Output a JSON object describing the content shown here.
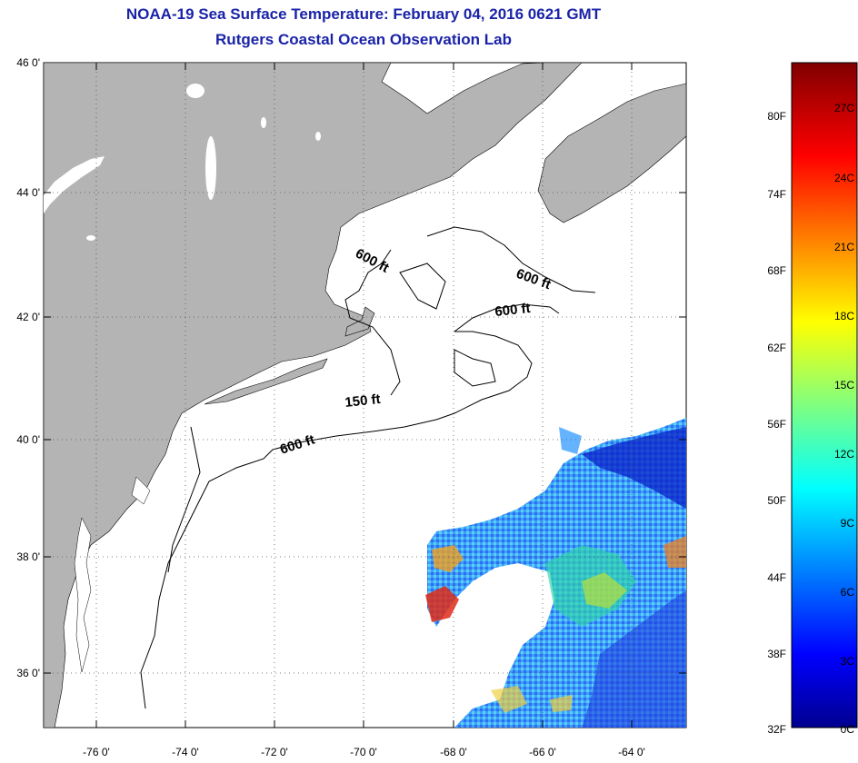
{
  "title": "NOAA-19 Sea Surface Temperature:  February 04, 2016 0621 GMT",
  "subtitle": "Rutgers Coastal Ocean Observation Lab",
  "latitude_ticks": [
    "46 0'",
    "44 0'",
    "42 0'",
    "40 0'",
    "38 0'",
    "36 0'"
  ],
  "longitude_ticks": [
    "-76 0'",
    "-74 0'",
    "-72 0'",
    "-70 0'",
    "-68 0'",
    "-66 0'",
    "-64 0'"
  ],
  "contour_labels": [
    "600 ft",
    "600 ft",
    "600 ft",
    "150 ft",
    "600 ft"
  ],
  "colorbar": {
    "fahrenheit_labels": [
      "80F",
      "74F",
      "68F",
      "62F",
      "56F",
      "50F",
      "44F",
      "38F",
      "32F"
    ],
    "celsius_labels": [
      "27C",
      "24C",
      "21C",
      "18C",
      "15C",
      "12C",
      "9C",
      "6C",
      "3C",
      "0C"
    ]
  },
  "colors": {
    "title": "#1a23a8",
    "land": "#b4b4b4",
    "ocean": "#ffffff"
  }
}
